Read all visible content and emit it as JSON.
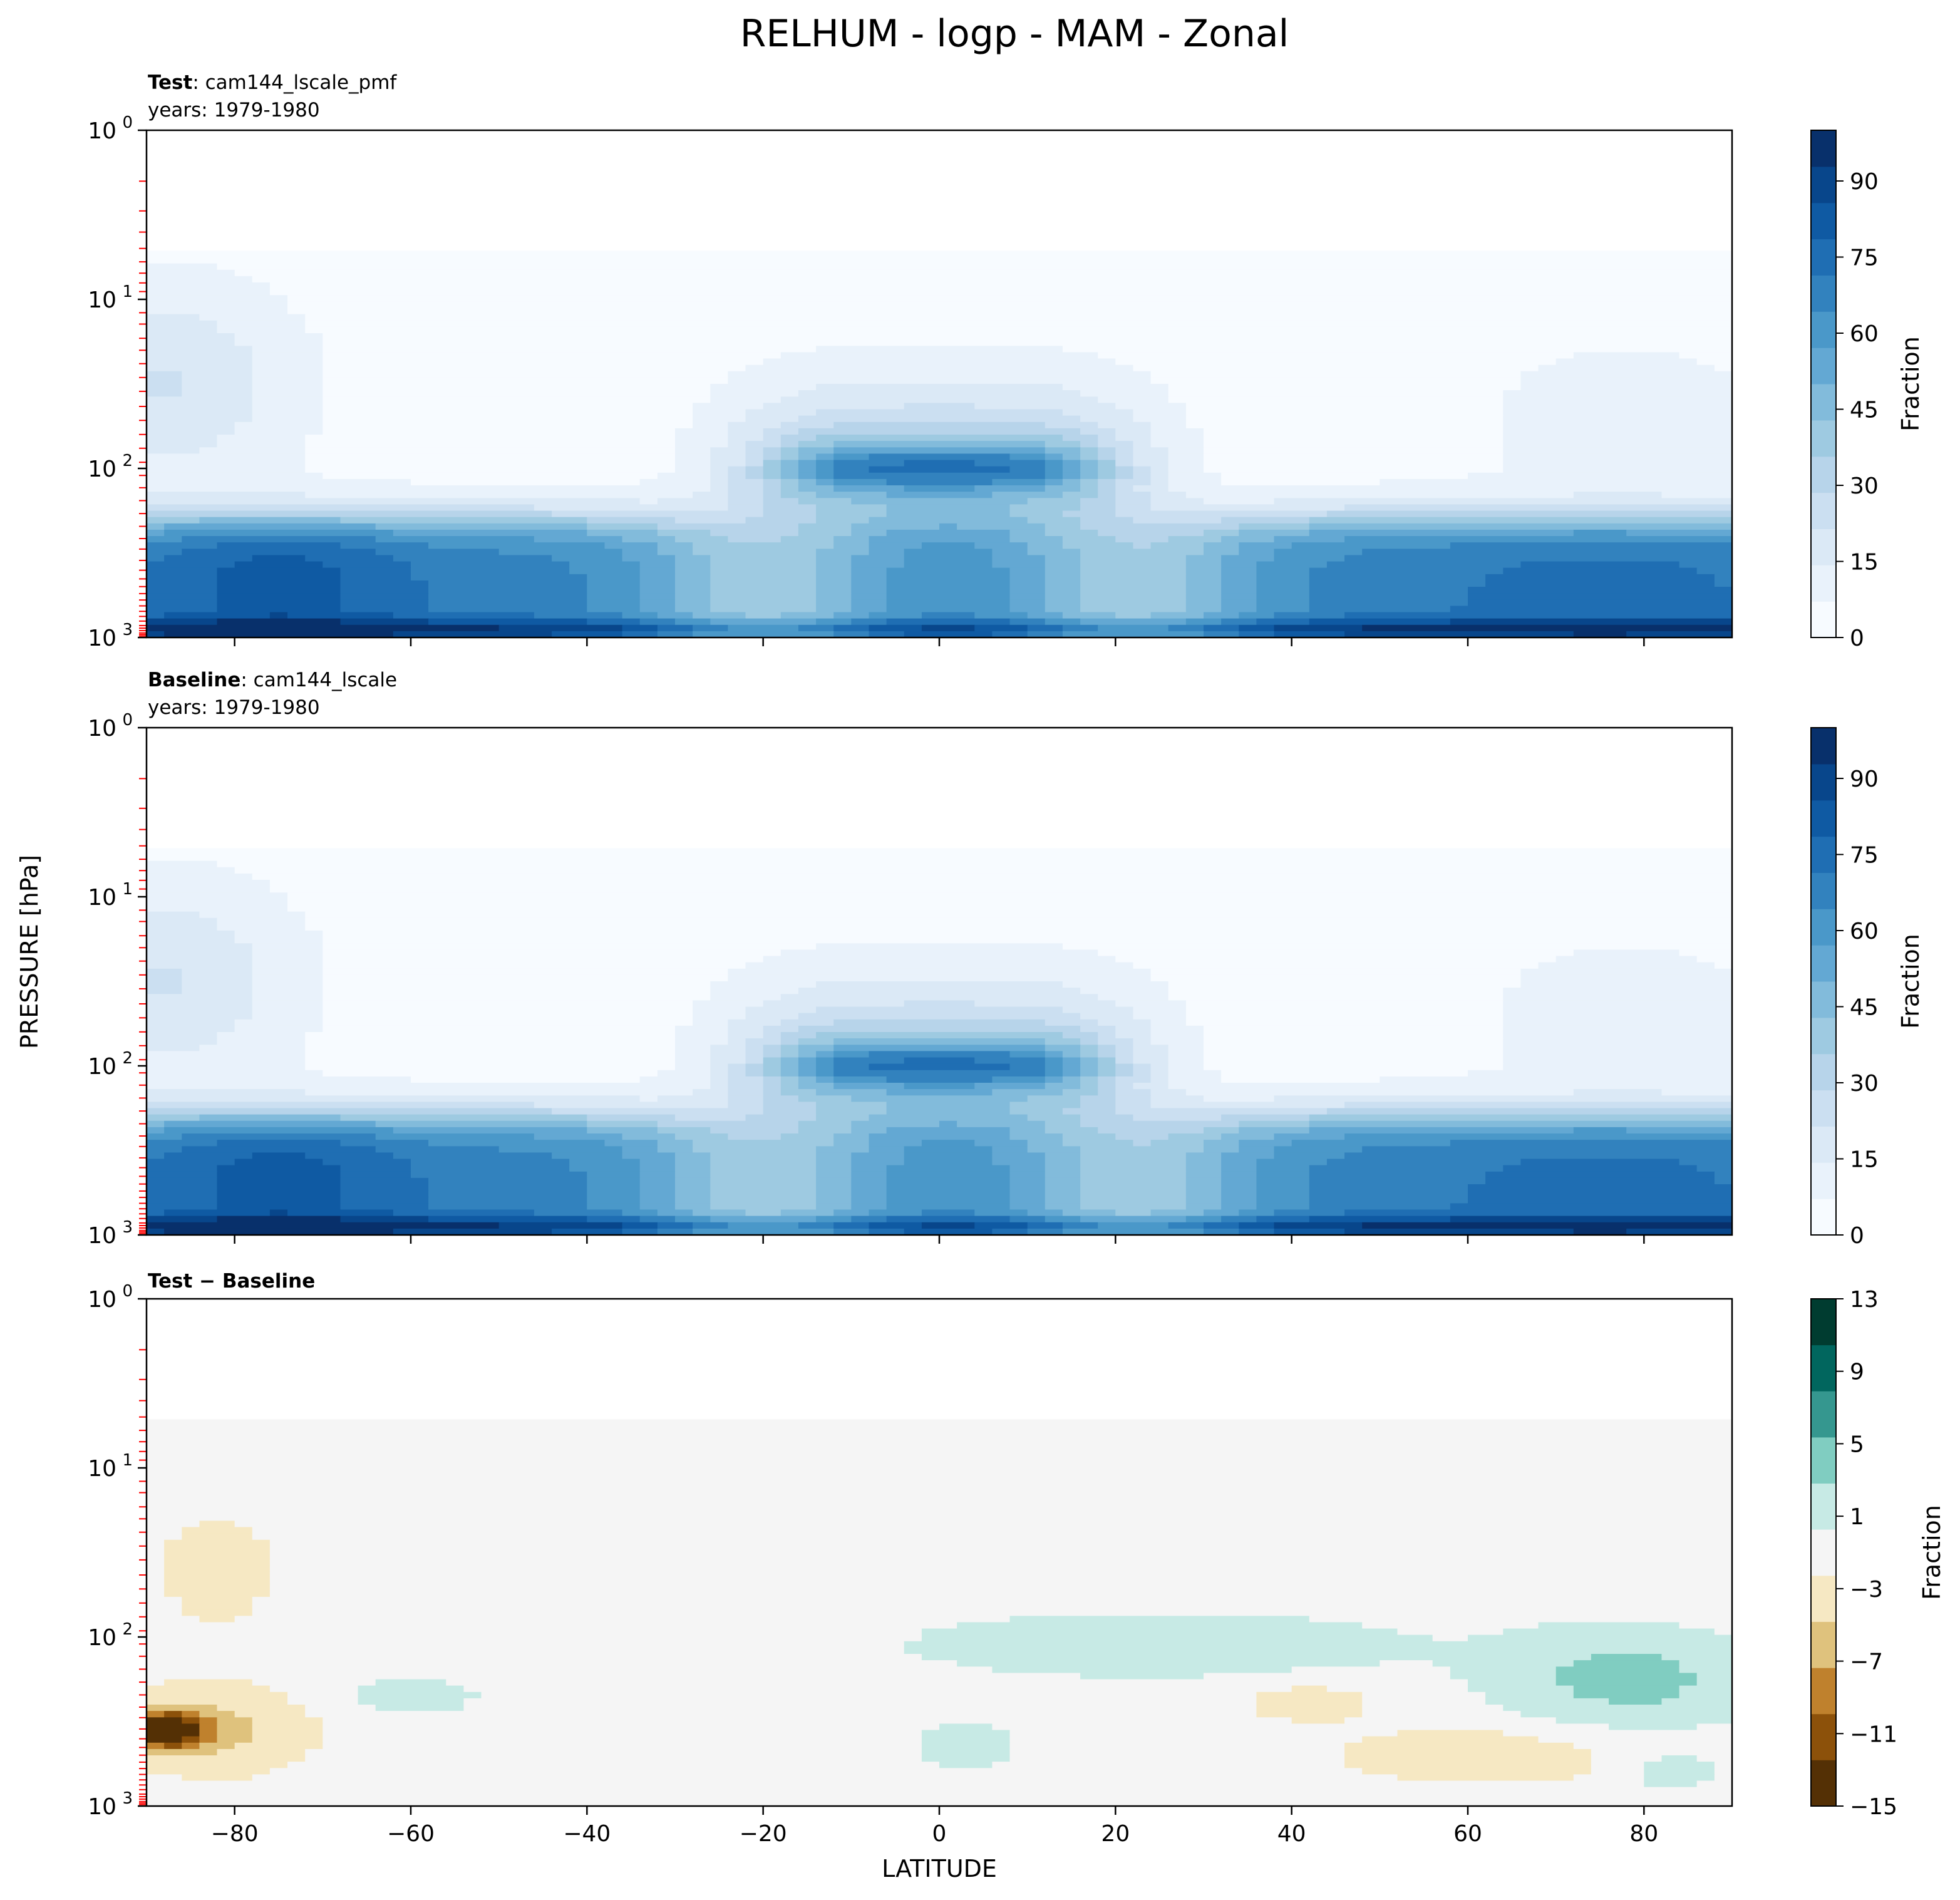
{
  "chart_data": {
    "type": "heatmap",
    "title": "RELHUM - logp - MAM - Zonal",
    "xlabel": "LATITUDE",
    "ylabel": "PRESSURE [hPa]",
    "xlim": [
      -90,
      90
    ],
    "ylim": [
      1000,
      1
    ],
    "yscale": "log",
    "x_ticks": [
      -80,
      -60,
      -40,
      -20,
      0,
      20,
      40,
      60,
      80
    ],
    "x_tick_labels": [
      "−80",
      "−60",
      "−40",
      "−20",
      "0",
      "20",
      "40",
      "60",
      "80"
    ],
    "y_tick_bases": [
      "10",
      "10",
      "10",
      "10"
    ],
    "y_tick_exponents": [
      "0",
      "1",
      "2",
      "3"
    ],
    "panels": [
      {
        "title_bold": "Test",
        "title_rest": ": cam144_lscale_pmf",
        "subtitle": "years: 1979-1980",
        "colormap": "Blues",
        "colorbar_label": "Fraction",
        "colorbar_ticks": [
          "0",
          "15",
          "30",
          "45",
          "60",
          "75",
          "90"
        ],
        "colorbar_range": [
          0,
          100
        ]
      },
      {
        "title_bold": "Baseline",
        "title_rest": ": cam144_lscale",
        "subtitle": "years: 1979-1980",
        "colormap": "Blues",
        "colorbar_label": "Fraction",
        "colorbar_ticks": [
          "0",
          "15",
          "30",
          "45",
          "60",
          "75",
          "90"
        ],
        "colorbar_range": [
          0,
          100
        ]
      },
      {
        "title_bold": "Test − Baseline",
        "title_rest": "",
        "subtitle": "",
        "colormap": "BrBG",
        "colorbar_label": "Fraction",
        "colorbar_ticks": [
          "−15",
          "−11",
          "−7",
          "−3",
          "1",
          "5",
          "9",
          "13"
        ],
        "colorbar_range": [
          -15,
          13
        ]
      }
    ]
  }
}
